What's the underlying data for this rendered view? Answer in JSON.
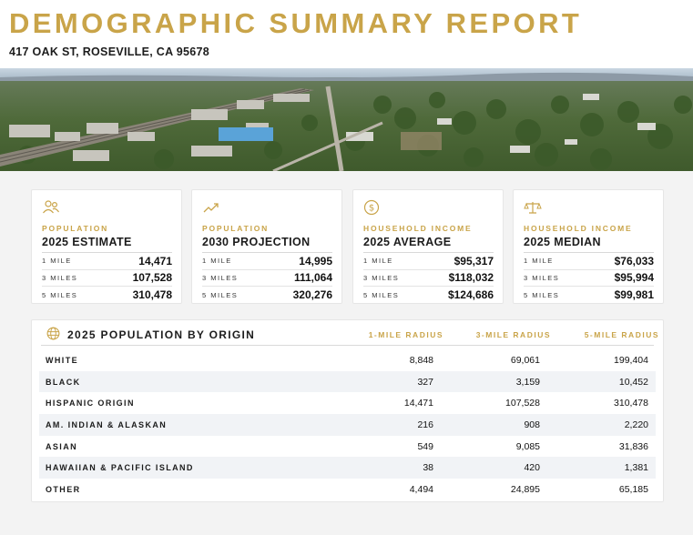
{
  "header": {
    "title": "DEMOGRAPHIC SUMMARY REPORT",
    "address": "417 OAK ST, ROSEVILLE, CA 95678"
  },
  "colors": {
    "accent": "#c9a449",
    "text": "#1c1c1c",
    "alt_row": "#f1f3f6"
  },
  "cards": [
    {
      "icon": "people-icon",
      "label": "POPULATION",
      "title": "2025 ESTIMATE",
      "rows": [
        {
          "k": "1 MILE",
          "v": "14,471"
        },
        {
          "k": "3 MILES",
          "v": "107,528"
        },
        {
          "k": "5 MILES",
          "v": "310,478"
        }
      ]
    },
    {
      "icon": "trend-up-icon",
      "label": "POPULATION",
      "title": "2030 PROJECTION",
      "rows": [
        {
          "k": "1 MILE",
          "v": "14,995"
        },
        {
          "k": "3 MILES",
          "v": "111,064"
        },
        {
          "k": "5 MILES",
          "v": "320,276"
        }
      ]
    },
    {
      "icon": "dollar-coin-icon",
      "label": "HOUSEHOLD INCOME",
      "title": "2025 AVERAGE",
      "rows": [
        {
          "k": "1 MILE",
          "v": "$95,317"
        },
        {
          "k": "3 MILES",
          "v": "$118,032"
        },
        {
          "k": "5 MILES",
          "v": "$124,686"
        }
      ]
    },
    {
      "icon": "balance-scale-icon",
      "label": "HOUSEHOLD INCOME",
      "title": "2025 MEDIAN",
      "rows": [
        {
          "k": "1 MILE",
          "v": "$76,033"
        },
        {
          "k": "3 MILES",
          "v": "$95,994"
        },
        {
          "k": "5 MILES",
          "v": "$99,981"
        }
      ]
    }
  ],
  "origin_table": {
    "icon": "globe-icon",
    "title": "2025 POPULATION BY ORIGIN",
    "columns": [
      "1-MILE RADIUS",
      "3-MILE RADIUS",
      "5-MILE RADIUS"
    ],
    "rows": [
      {
        "label": "WHITE",
        "values": [
          "8,848",
          "69,061",
          "199,404"
        ]
      },
      {
        "label": "BLACK",
        "values": [
          "327",
          "3,159",
          "10,452"
        ]
      },
      {
        "label": "HISPANIC ORIGIN",
        "values": [
          "14,471",
          "107,528",
          "310,478"
        ]
      },
      {
        "label": "AM. INDIAN & ALASKAN",
        "values": [
          "216",
          "908",
          "2,220"
        ]
      },
      {
        "label": "ASIAN",
        "values": [
          "549",
          "9,085",
          "31,836"
        ]
      },
      {
        "label": "HAWAIIAN & PACIFIC ISLAND",
        "values": [
          "38",
          "420",
          "1,381"
        ]
      },
      {
        "label": "OTHER",
        "values": [
          "4,494",
          "24,895",
          "65,185"
        ]
      }
    ]
  }
}
